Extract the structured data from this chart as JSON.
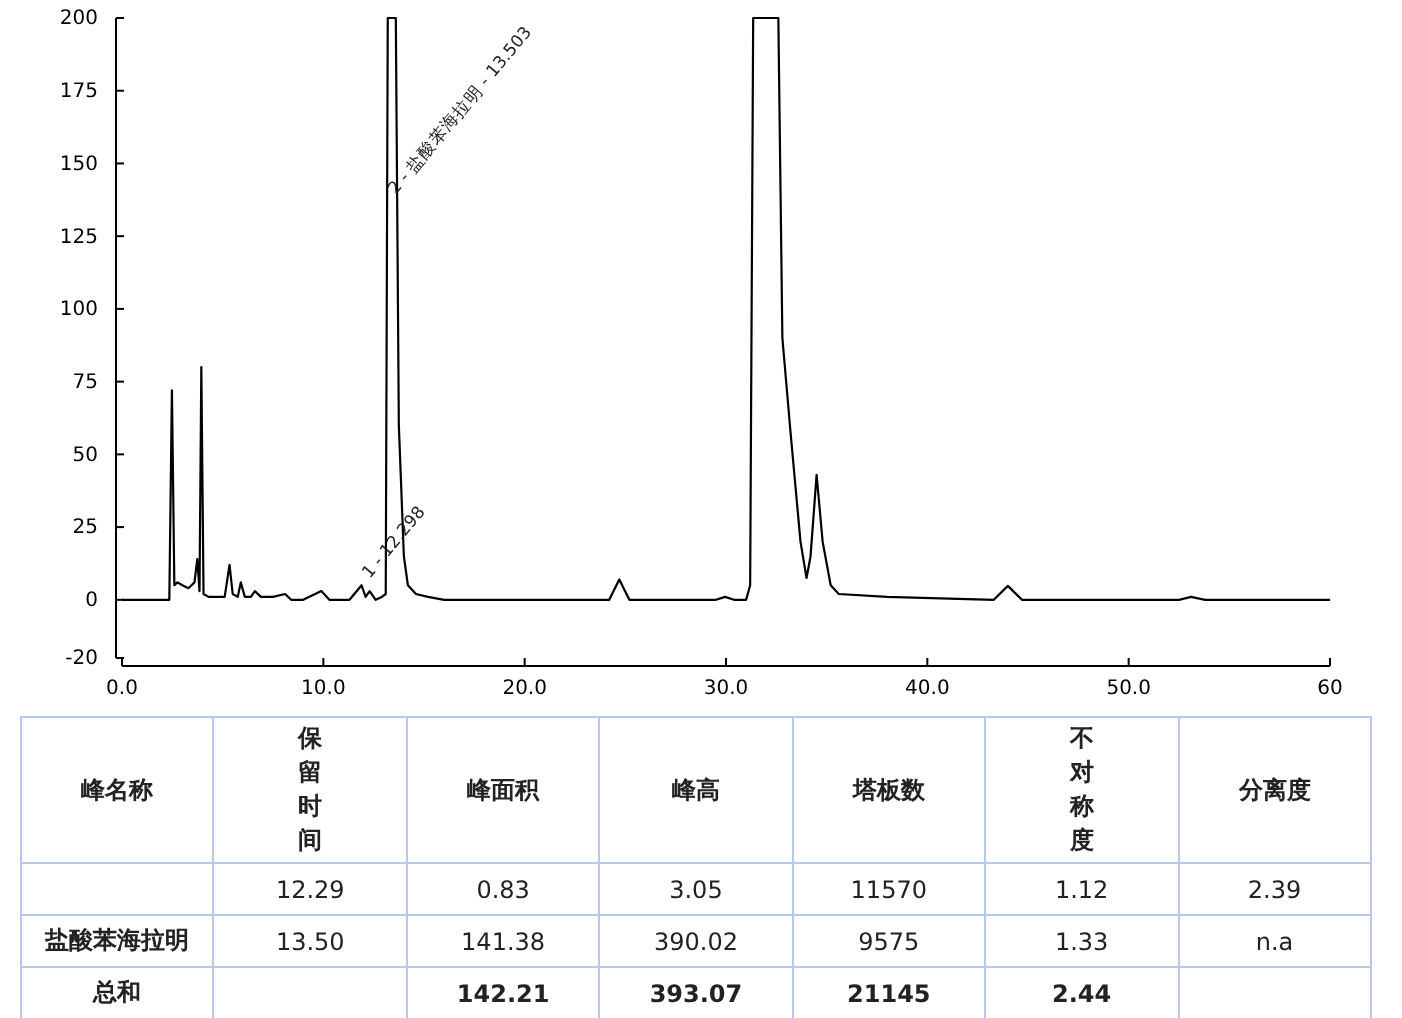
{
  "chart_data": [
    {
      "type": "line",
      "xlim": [
        0,
        60
      ],
      "ylim": [
        -20,
        200
      ],
      "xticks": [
        {
          "value": 0,
          "label": "0.0"
        },
        {
          "value": 10,
          "label": "10.0"
        },
        {
          "value": 20,
          "label": "20.0"
        },
        {
          "value": 30,
          "label": "30.0"
        },
        {
          "value": 40,
          "label": "40.0"
        },
        {
          "value": 50,
          "label": "50.0"
        },
        {
          "value": 60,
          "label": "60"
        }
      ],
      "yticks": [
        -20,
        0,
        25,
        50,
        75,
        100,
        125,
        150,
        175,
        200
      ],
      "grid": false,
      "marker": "none",
      "line_style": "solid",
      "series": [
        {
          "color": "#000000",
          "x": [
            0,
            2.2,
            2.35,
            2.48,
            2.6,
            2.75,
            3.0,
            3.3,
            3.6,
            3.74,
            3.85,
            3.94,
            4.05,
            4.3,
            5.1,
            5.34,
            5.5,
            5.75,
            5.9,
            6.1,
            6.4,
            6.6,
            6.9,
            7.5,
            8.1,
            8.4,
            9.0,
            9.9,
            10.3,
            11.3,
            11.9,
            12.1,
            12.3,
            12.6,
            12.9,
            13.1,
            13.2,
            13.6,
            13.75,
            14.0,
            14.2,
            14.6,
            15.2,
            16,
            20,
            24.2,
            24.7,
            25.2,
            26,
            29.5,
            29.96,
            30.4,
            31.0,
            31.2,
            31.35,
            32.6,
            32.8,
            33.2,
            33.7,
            34.0,
            34.2,
            34.5,
            34.8,
            35.2,
            35.6,
            38,
            43.3,
            44.0,
            44.7,
            46,
            52.5,
            53.1,
            53.8,
            57,
            60
          ],
          "values": [
            0,
            0,
            0,
            72,
            5,
            6,
            5,
            4,
            6,
            14,
            3,
            80,
            2,
            1,
            1,
            12,
            2,
            1,
            6,
            1,
            1,
            3,
            1,
            1,
            2,
            0,
            0,
            3,
            0,
            0,
            5,
            1,
            3,
            0,
            1,
            2,
            200,
            200,
            60,
            15,
            5,
            2,
            1,
            0,
            0,
            0,
            7,
            0,
            0,
            0,
            1,
            0,
            0,
            5,
            200,
            200,
            90,
            58,
            20,
            7.5,
            15,
            43,
            20,
            5,
            2,
            1,
            0,
            4.8,
            0,
            0,
            0,
            1,
            0,
            0,
            0
          ]
        }
      ],
      "annotations": [
        {
          "text": "2 - 盐酸苯海拉明 - 13.503",
          "x": 13.6,
          "y": 135
        },
        {
          "text": "1 - 12.298",
          "x": 12.3,
          "y": 3
        }
      ]
    },
    {
      "type": "other",
      "categories": [
        "峰名称",
        "保留时间",
        "峰面积",
        "峰高",
        "塔板数",
        "不对称度",
        "分离度"
      ],
      "cell_labels": [
        [
          null,
          "12.29",
          "0.83",
          "3.05",
          "11570",
          "1.12",
          "2.39"
        ],
        [
          "盐酸苯海拉明",
          "13.50",
          "141.38",
          "390.02",
          "9575",
          "1.33",
          "n.a"
        ],
        [
          "总和",
          null,
          "142.21",
          "393.07",
          "21145",
          "2.44",
          null
        ]
      ]
    }
  ]
}
